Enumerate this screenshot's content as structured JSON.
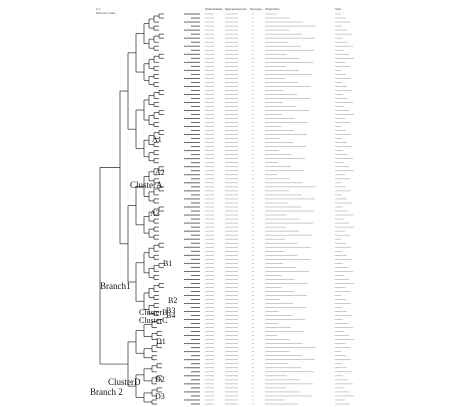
{
  "scale": {
    "line1": "0.1",
    "line2": "Distance scale"
  },
  "columns": {
    "strain": "Strain/isolate",
    "species": "Species/serovar",
    "serovar": "Serotype",
    "origin": "Origin/host",
    "year": "Year"
  },
  "labels": {
    "branch1": "Branch1",
    "branch2": "Branch 2",
    "clusterA": "ClusterA",
    "clusterB": "ClusterB",
    "clusterC": "ClusterC",
    "clusterD": "ClusterD",
    "a1": "A1",
    "a2": "A2",
    "a3": "A3",
    "b1": "B1",
    "b2": "B2",
    "b3": "B3",
    "b4": "B4",
    "d1": "D1",
    "d2": "D2",
    "d3": "D3"
  },
  "colors": {
    "tree_line": "#2a2a2a",
    "row_text": "#6a6a6a"
  }
}
